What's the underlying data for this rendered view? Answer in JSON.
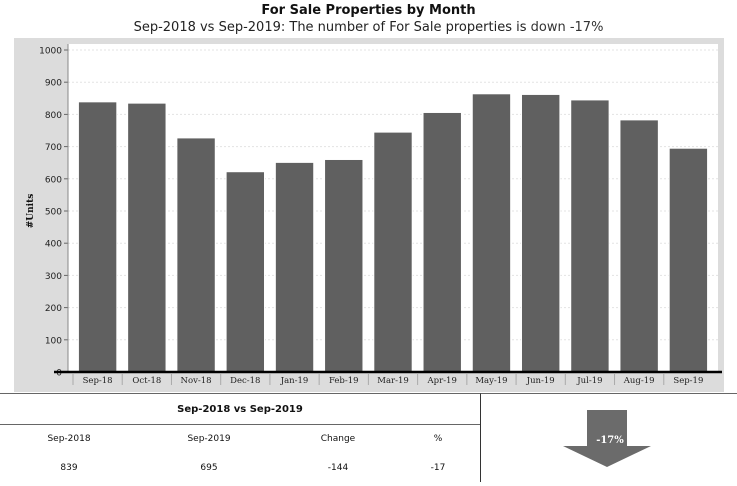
{
  "header": {
    "title": "For Sale Properties by Month",
    "subtitle_prefix": "Sep-2018 vs Sep-2019: The number of For Sale properties is ",
    "subtitle_suffix": "down -17%"
  },
  "chart_data": {
    "type": "bar",
    "categories": [
      "Sep-18",
      "Oct-18",
      "Nov-18",
      "Dec-18",
      "Jan-19",
      "Feb-19",
      "Mar-19",
      "Apr-19",
      "May-19",
      "Jun-19",
      "Jul-19",
      "Aug-19",
      "Sep-19"
    ],
    "values": [
      839,
      835,
      727,
      622,
      651,
      660,
      745,
      806,
      864,
      862,
      845,
      783,
      695
    ],
    "xlabel": "",
    "ylabel": "#Units",
    "ylim": [
      0,
      1000
    ],
    "yticks": [
      0,
      100,
      200,
      300,
      400,
      500,
      600,
      700,
      800,
      900,
      1000
    ],
    "grid": true,
    "colors": {
      "bar": "#606060",
      "plot_bg": "#ffffff",
      "frame_bg": "#dcdcdc"
    }
  },
  "comparison": {
    "title": "Sep-2018 vs Sep-2019",
    "headers": [
      "Sep-2018",
      "Sep-2019",
      "Change",
      "%"
    ],
    "values": [
      "839",
      "695",
      "-144",
      "-17"
    ]
  },
  "indicator": {
    "label": "-17%",
    "direction": "down",
    "color": "#6b6b6b"
  }
}
